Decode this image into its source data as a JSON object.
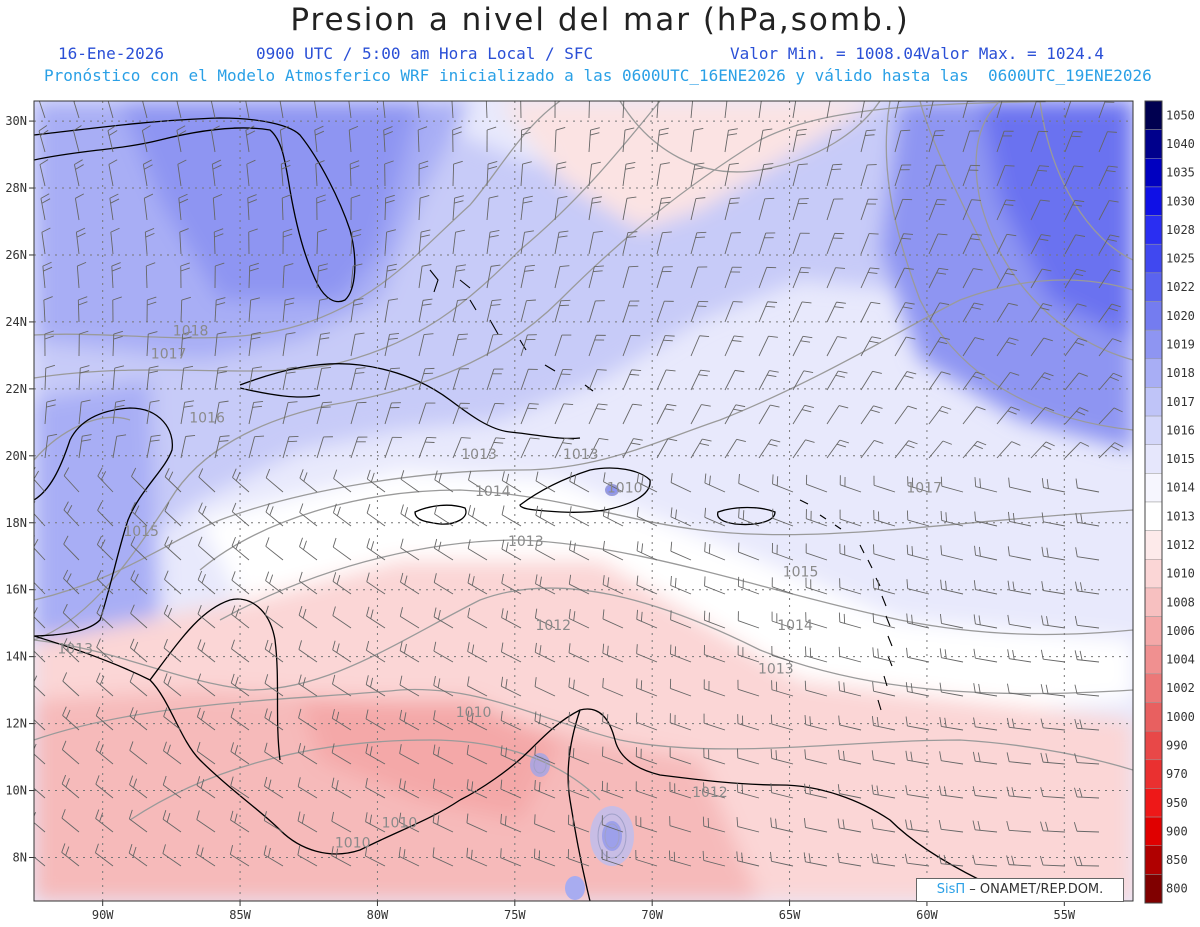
{
  "header": {
    "title": "Presion a nivel del mar (hPa,somb.)",
    "date": "16-Ene-2026",
    "time": "0900 UTC / 5:00 am Hora Local / SFC",
    "min": "Valor Min. = 1008.04",
    "max": "Valor Max. = 1024.4",
    "forecast": "Pronóstico con el Modelo Atmosferico WRF inicializado a las 0600UTC_16ENE2026 y válido hasta las  0600UTC_19ENE2026"
  },
  "credit": {
    "brand": "SisΠ",
    "text": "– ONAMET/REP.DOM."
  },
  "map": {
    "lon_range": [
      -92.5,
      -52.5
    ],
    "lat_range": [
      6.7,
      30.6
    ],
    "lon_ticks": [
      {
        "value": -90,
        "label": "90W"
      },
      {
        "value": -85,
        "label": "85W"
      },
      {
        "value": -80,
        "label": "80W"
      },
      {
        "value": -75,
        "label": "75W"
      },
      {
        "value": -70,
        "label": "70W"
      },
      {
        "value": -65,
        "label": "65W"
      },
      {
        "value": -60,
        "label": "60W"
      },
      {
        "value": -55,
        "label": "55W"
      }
    ],
    "lat_ticks": [
      {
        "value": 8,
        "label": "8N"
      },
      {
        "value": 10,
        "label": "10N"
      },
      {
        "value": 12,
        "label": "12N"
      },
      {
        "value": 14,
        "label": "14N"
      },
      {
        "value": 16,
        "label": "16N"
      },
      {
        "value": 18,
        "label": "18N"
      },
      {
        "value": 20,
        "label": "20N"
      },
      {
        "value": 22,
        "label": "22N"
      },
      {
        "value": 24,
        "label": "24N"
      },
      {
        "value": 26,
        "label": "26N"
      },
      {
        "value": 28,
        "label": "28N"
      },
      {
        "value": 30,
        "label": "30N"
      }
    ],
    "contour_labels": [
      {
        "text": "1018",
        "lon": -86.8,
        "lat": 23.6
      },
      {
        "text": "1017",
        "lon": -87.6,
        "lat": 22.9
      },
      {
        "text": "1016",
        "lon": -86.2,
        "lat": 21.0
      },
      {
        "text": "1015",
        "lon": -88.6,
        "lat": 17.6
      },
      {
        "text": "1013",
        "lon": -76.3,
        "lat": 19.9
      },
      {
        "text": "1013",
        "lon": -72.6,
        "lat": 19.9
      },
      {
        "text": "1014",
        "lon": -75.8,
        "lat": 18.8
      },
      {
        "text": "1013",
        "lon": -74.6,
        "lat": 17.3
      },
      {
        "text": "1015",
        "lon": -64.6,
        "lat": 16.4
      },
      {
        "text": "1014",
        "lon": -64.8,
        "lat": 14.8
      },
      {
        "text": "1013",
        "lon": -65.5,
        "lat": 13.5
      },
      {
        "text": "1012",
        "lon": -73.6,
        "lat": 14.8
      },
      {
        "text": "1010",
        "lon": -76.5,
        "lat": 12.2
      },
      {
        "text": "1010",
        "lon": -71.0,
        "lat": 18.9
      },
      {
        "text": "1017",
        "lon": -60.1,
        "lat": 18.9
      },
      {
        "text": "1012",
        "lon": -67.9,
        "lat": 9.8
      },
      {
        "text": "1013",
        "lon": -91.0,
        "lat": 14.1
      },
      {
        "text": "1010",
        "lon": -79.2,
        "lat": 8.9
      },
      {
        "text": "1010",
        "lon": -80.9,
        "lat": 8.3
      }
    ],
    "colorbar": [
      {
        "label": "1050",
        "color": "#000050"
      },
      {
        "label": "1040",
        "color": "#00008c"
      },
      {
        "label": "1035",
        "color": "#0000c0"
      },
      {
        "label": "1030",
        "color": "#0f10e6"
      },
      {
        "label": "1028",
        "color": "#2a2ef2"
      },
      {
        "label": "1025",
        "color": "#4048f0"
      },
      {
        "label": "1022",
        "color": "#5a63ef"
      },
      {
        "label": "1020",
        "color": "#747cf0"
      },
      {
        "label": "1019",
        "color": "#8e95f2"
      },
      {
        "label": "1018",
        "color": "#a8aef5"
      },
      {
        "label": "1017",
        "color": "#bfc4f8"
      },
      {
        "label": "1016",
        "color": "#d4d7fa"
      },
      {
        "label": "1015",
        "color": "#e6e7fc"
      },
      {
        "label": "1014",
        "color": "#f6f6fe"
      },
      {
        "label": "1013",
        "color": "#ffffff"
      },
      {
        "label": "1012",
        "color": "#fdeaea"
      },
      {
        "label": "1010",
        "color": "#fbd6d6"
      },
      {
        "label": "1008",
        "color": "#f7c0c0"
      },
      {
        "label": "1006",
        "color": "#f4a8a8"
      },
      {
        "label": "1004",
        "color": "#f09090"
      },
      {
        "label": "1002",
        "color": "#ec7878"
      },
      {
        "label": "1000",
        "color": "#e86060"
      },
      {
        "label": "990",
        "color": "#e84848"
      },
      {
        "label": "970",
        "color": "#ea3030"
      },
      {
        "label": "950",
        "color": "#ee1818"
      },
      {
        "label": "900",
        "color": "#e00000"
      },
      {
        "label": "850",
        "color": "#b00000"
      },
      {
        "label": "800",
        "color": "#800000"
      }
    ]
  }
}
